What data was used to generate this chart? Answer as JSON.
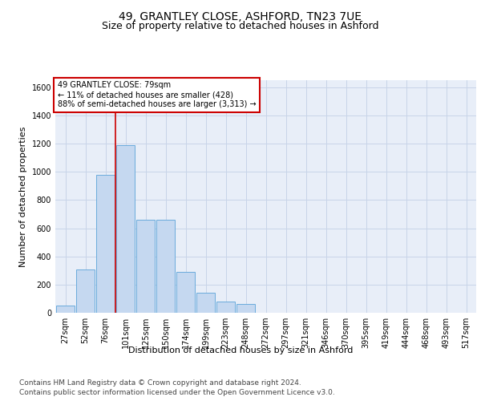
{
  "title_line1": "49, GRANTLEY CLOSE, ASHFORD, TN23 7UE",
  "title_line2": "Size of property relative to detached houses in Ashford",
  "xlabel": "Distribution of detached houses by size in Ashford",
  "ylabel": "Number of detached properties",
  "categories": [
    "27sqm",
    "52sqm",
    "76sqm",
    "101sqm",
    "125sqm",
    "150sqm",
    "174sqm",
    "199sqm",
    "223sqm",
    "248sqm",
    "272sqm",
    "297sqm",
    "321sqm",
    "346sqm",
    "370sqm",
    "395sqm",
    "419sqm",
    "444sqm",
    "468sqm",
    "493sqm",
    "517sqm"
  ],
  "values": [
    50,
    310,
    980,
    1190,
    660,
    660,
    290,
    140,
    80,
    60,
    0,
    0,
    0,
    0,
    0,
    0,
    0,
    0,
    0,
    0,
    0
  ],
  "bar_color": "#c5d8f0",
  "bar_edge_color": "#6aabdc",
  "vline_x_idx": 2.5,
  "annotation_text": "49 GRANTLEY CLOSE: 79sqm\n← 11% of detached houses are smaller (428)\n88% of semi-detached houses are larger (3,313) →",
  "annotation_box_facecolor": "#ffffff",
  "annotation_box_edgecolor": "#cc0000",
  "vline_color": "#cc0000",
  "ylim": [
    0,
    1650
  ],
  "yticks": [
    0,
    200,
    400,
    600,
    800,
    1000,
    1200,
    1400,
    1600
  ],
  "grid_color": "#c8d4e8",
  "background_color": "#e8eef8",
  "footer_line1": "Contains HM Land Registry data © Crown copyright and database right 2024.",
  "footer_line2": "Contains public sector information licensed under the Open Government Licence v3.0.",
  "title_fontsize": 10,
  "subtitle_fontsize": 9,
  "axis_label_fontsize": 8,
  "tick_fontsize": 7,
  "annotation_fontsize": 7,
  "footer_fontsize": 6.5
}
